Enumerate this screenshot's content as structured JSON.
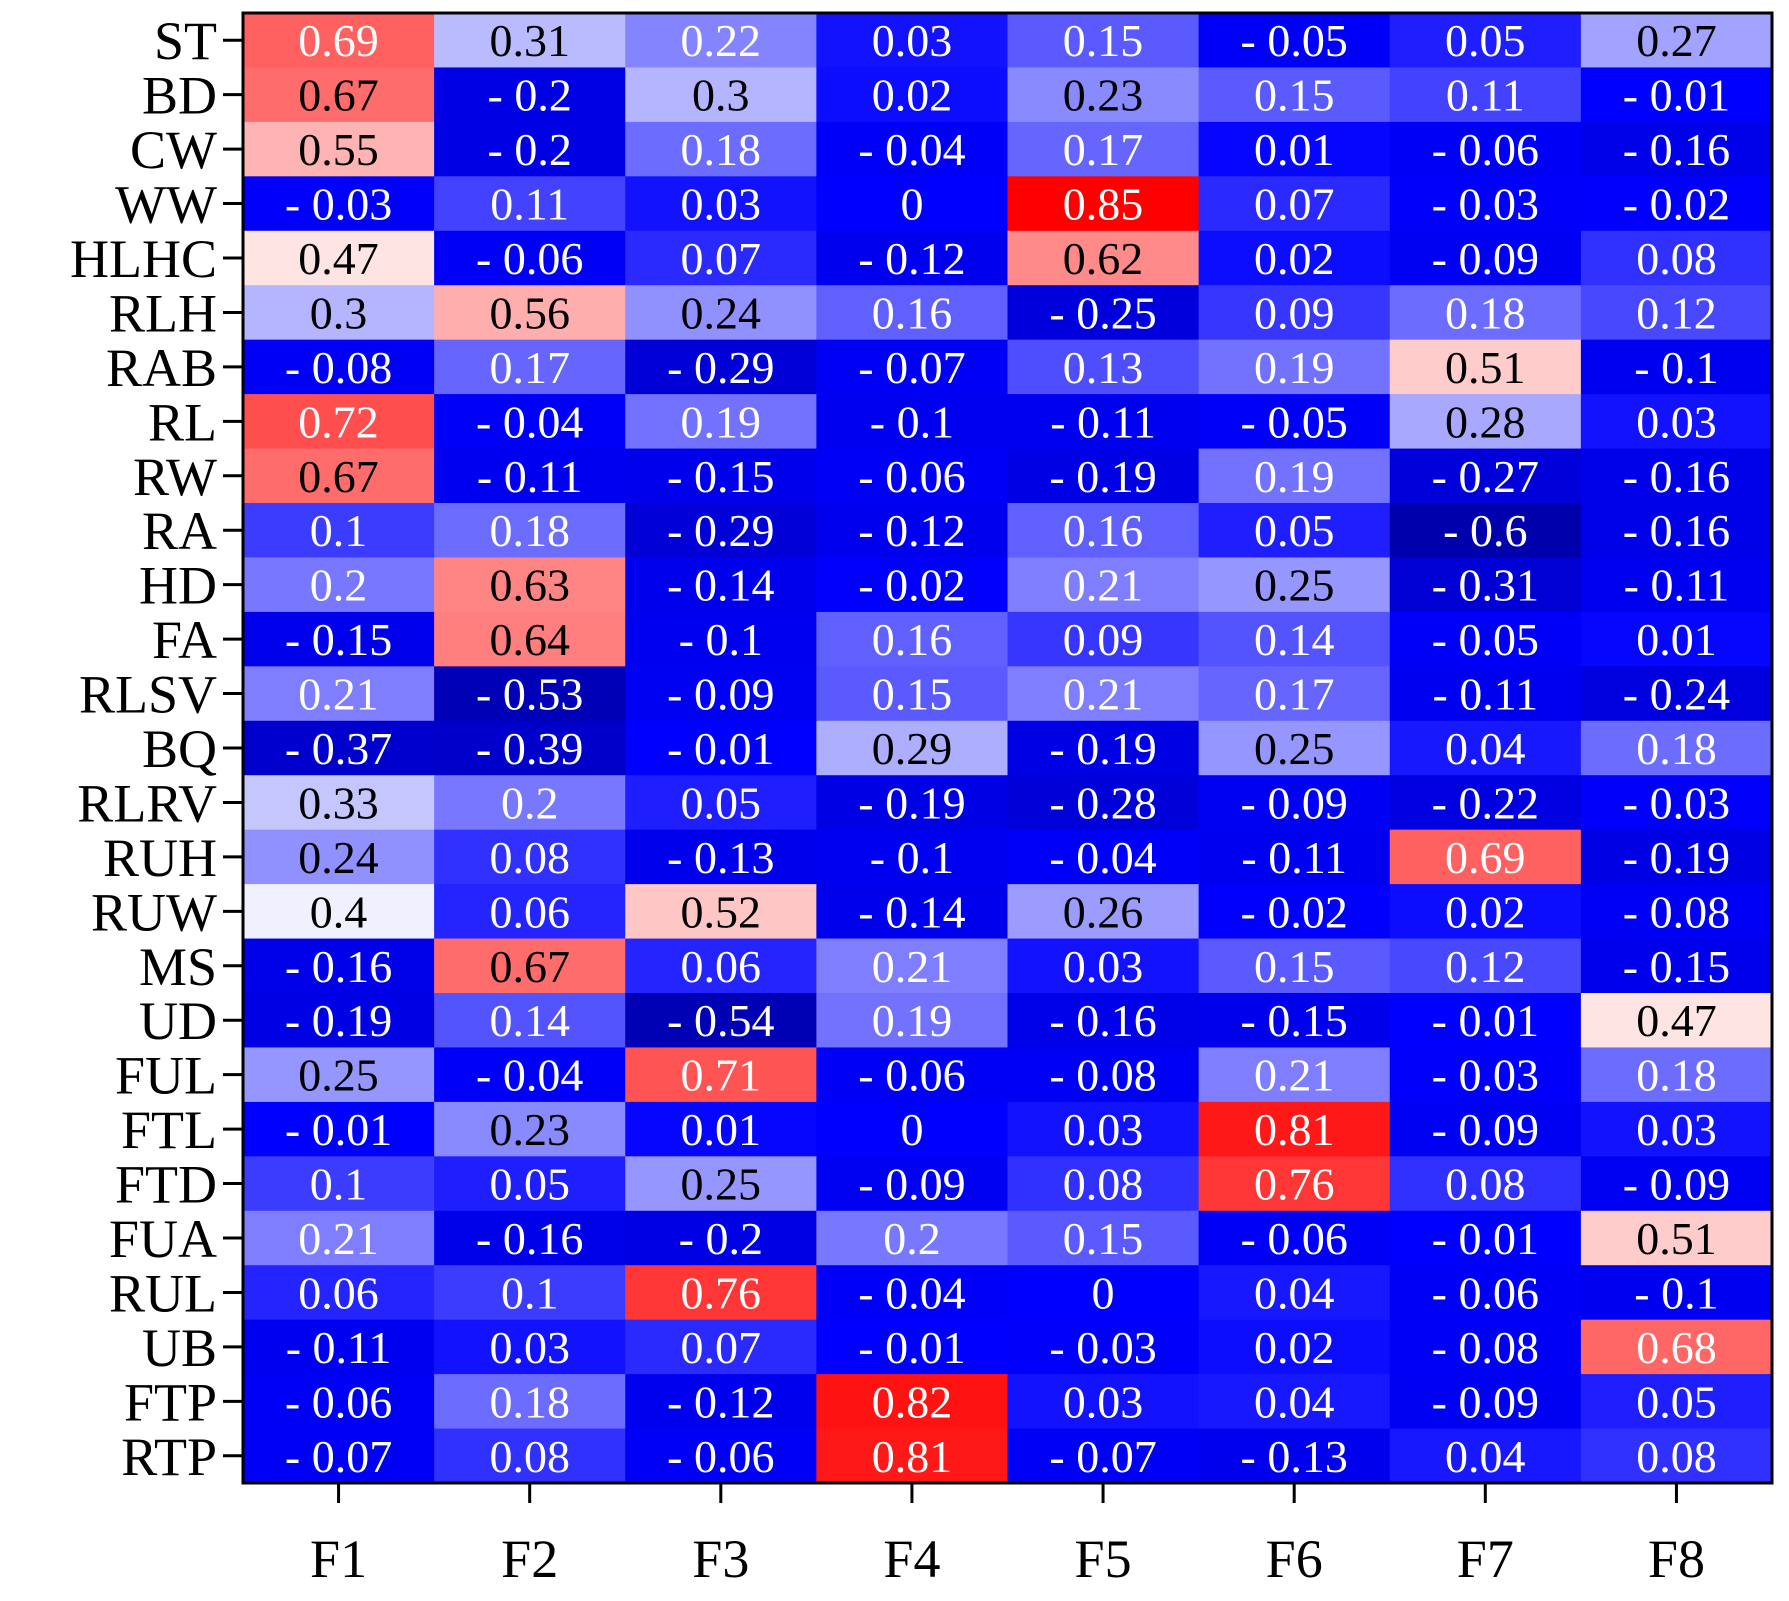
{
  "chart_data": {
    "type": "heatmap",
    "title": "",
    "xlabel": "",
    "ylabel": "",
    "columns": [
      "F1",
      "F2",
      "F3",
      "F4",
      "F5",
      "F6",
      "F7",
      "F8"
    ],
    "rows": [
      "ST",
      "BD",
      "CW",
      "WW",
      "HLHC",
      "RLH",
      "RAB",
      "RL",
      "RW",
      "RA",
      "HD",
      "FA",
      "RLSV",
      "BQ",
      "RLRV",
      "RUH",
      "RUW",
      "MS",
      "UD",
      "FUL",
      "FTL",
      "FTD",
      "FUA",
      "RUL",
      "UB",
      "FTP",
      "RTP"
    ],
    "values": [
      [
        0.69,
        0.31,
        0.22,
        0.03,
        0.15,
        -0.05,
        0.05,
        0.27
      ],
      [
        0.67,
        -0.2,
        0.3,
        0.02,
        0.23,
        0.15,
        0.11,
        -0.01
      ],
      [
        0.55,
        -0.2,
        0.18,
        -0.04,
        0.17,
        0.01,
        -0.06,
        -0.16
      ],
      [
        -0.03,
        0.11,
        0.03,
        0,
        0.85,
        0.07,
        -0.03,
        -0.02
      ],
      [
        0.47,
        -0.06,
        0.07,
        -0.12,
        0.62,
        0.02,
        -0.09,
        0.08
      ],
      [
        0.3,
        0.56,
        0.24,
        0.16,
        -0.25,
        0.09,
        0.18,
        0.12
      ],
      [
        -0.08,
        0.17,
        -0.29,
        -0.07,
        0.13,
        0.19,
        0.51,
        -0.1
      ],
      [
        0.72,
        -0.04,
        0.19,
        -0.1,
        -0.11,
        -0.05,
        0.28,
        0.03
      ],
      [
        0.67,
        -0.11,
        -0.15,
        -0.06,
        -0.19,
        0.19,
        -0.27,
        -0.16
      ],
      [
        0.1,
        0.18,
        -0.29,
        -0.12,
        0.16,
        0.05,
        -0.6,
        -0.16
      ],
      [
        0.2,
        0.63,
        -0.14,
        -0.02,
        0.21,
        0.25,
        -0.31,
        -0.11
      ],
      [
        -0.15,
        0.64,
        -0.1,
        0.16,
        0.09,
        0.14,
        -0.05,
        0.01
      ],
      [
        0.21,
        -0.53,
        -0.09,
        0.15,
        0.21,
        0.17,
        -0.11,
        -0.24
      ],
      [
        -0.37,
        -0.39,
        -0.01,
        0.29,
        -0.19,
        0.25,
        0.04,
        0.18
      ],
      [
        0.33,
        0.2,
        0.05,
        -0.19,
        -0.28,
        -0.09,
        -0.22,
        -0.03
      ],
      [
        0.24,
        0.08,
        -0.13,
        -0.1,
        -0.04,
        -0.11,
        0.69,
        -0.19
      ],
      [
        0.4,
        0.06,
        0.52,
        -0.14,
        0.26,
        -0.02,
        0.02,
        -0.08
      ],
      [
        -0.16,
        0.67,
        0.06,
        0.21,
        0.03,
        0.15,
        0.12,
        -0.15
      ],
      [
        -0.19,
        0.14,
        -0.54,
        0.19,
        -0.16,
        -0.15,
        -0.01,
        0.47
      ],
      [
        0.25,
        -0.04,
        0.71,
        -0.06,
        -0.08,
        0.21,
        -0.03,
        0.18
      ],
      [
        -0.01,
        0.23,
        0.01,
        0,
        0.03,
        0.81,
        -0.09,
        0.03
      ],
      [
        0.1,
        0.05,
        0.25,
        -0.09,
        0.08,
        0.76,
        0.08,
        -0.09
      ],
      [
        0.21,
        -0.16,
        -0.2,
        0.2,
        0.15,
        -0.06,
        -0.01,
        0.51
      ],
      [
        0.06,
        0.1,
        0.76,
        -0.04,
        0,
        0.04,
        -0.06,
        -0.1
      ],
      [
        -0.11,
        0.03,
        0.07,
        -0.01,
        -0.03,
        0.02,
        -0.08,
        0.68
      ],
      [
        -0.06,
        0.18,
        -0.12,
        0.82,
        0.03,
        0.04,
        -0.09,
        0.05
      ],
      [
        -0.07,
        0.08,
        -0.06,
        0.81,
        -0.07,
        -0.13,
        0.04,
        0.08
      ]
    ],
    "value_labels": [
      [
        "0.69",
        "0.31",
        "0.22",
        "0.03",
        "0.15",
        "- 0.05",
        "0.05",
        "0.27"
      ],
      [
        "0.67",
        "- 0.2",
        "0.3",
        "0.02",
        "0.23",
        "0.15",
        "0.11",
        "- 0.01"
      ],
      [
        "0.55",
        "- 0.2",
        "0.18",
        "- 0.04",
        "0.17",
        "0.01",
        "- 0.06",
        "- 0.16"
      ],
      [
        "- 0.03",
        "0.11",
        "0.03",
        "0",
        "0.85",
        "0.07",
        "- 0.03",
        "- 0.02"
      ],
      [
        "0.47",
        "- 0.06",
        "0.07",
        "- 0.12",
        "0.62",
        "0.02",
        "- 0.09",
        "0.08"
      ],
      [
        "0.3",
        "0.56",
        "0.24",
        "0.16",
        "- 0.25",
        "0.09",
        "0.18",
        "0.12"
      ],
      [
        "- 0.08",
        "0.17",
        "- 0.29",
        "- 0.07",
        "0.13",
        "0.19",
        "0.51",
        "- 0.1"
      ],
      [
        "0.72",
        "- 0.04",
        "0.19",
        "- 0.1",
        "- 0.11",
        "- 0.05",
        "0.28",
        "0.03"
      ],
      [
        "0.67",
        "- 0.11",
        "- 0.15",
        "- 0.06",
        "- 0.19",
        "0.19",
        "- 0.27",
        "- 0.16"
      ],
      [
        "0.1",
        "0.18",
        "- 0.29",
        "- 0.12",
        "0.16",
        "0.05",
        "- 0.6",
        "- 0.16"
      ],
      [
        "0.2",
        "0.63",
        "- 0.14",
        "- 0.02",
        "0.21",
        "0.25",
        "- 0.31",
        "- 0.11"
      ],
      [
        "- 0.15",
        "0.64",
        "- 0.1",
        "0.16",
        "0.09",
        "0.14",
        "- 0.05",
        "0.01"
      ],
      [
        "0.21",
        "- 0.53",
        "- 0.09",
        "0.15",
        "0.21",
        "0.17",
        "- 0.11",
        "- 0.24"
      ],
      [
        "- 0.37",
        "- 0.39",
        "- 0.01",
        "0.29",
        "- 0.19",
        "0.25",
        "0.04",
        "0.18"
      ],
      [
        "0.33",
        "0.2",
        "0.05",
        "- 0.19",
        "- 0.28",
        "- 0.09",
        "- 0.22",
        "- 0.03"
      ],
      [
        "0.24",
        "0.08",
        "- 0.13",
        "- 0.1",
        "- 0.04",
        "- 0.11",
        "0.69",
        "- 0.19"
      ],
      [
        "0.4",
        "0.06",
        "0.52",
        "- 0.14",
        "0.26",
        "- 0.02",
        "0.02",
        "- 0.08"
      ],
      [
        "- 0.16",
        "0.67",
        "0.06",
        "0.21",
        "0.03",
        "0.15",
        "0.12",
        "- 0.15"
      ],
      [
        "- 0.19",
        "0.14",
        "- 0.54",
        "0.19",
        "- 0.16",
        "- 0.15",
        "- 0.01",
        "0.47"
      ],
      [
        "0.25",
        "- 0.04",
        "0.71",
        "- 0.06",
        "- 0.08",
        "0.21",
        "- 0.03",
        "0.18"
      ],
      [
        "- 0.01",
        "0.23",
        "0.01",
        "0",
        "0.03",
        "0.81",
        "- 0.09",
        "0.03"
      ],
      [
        "0.1",
        "0.05",
        "0.25",
        "- 0.09",
        "0.08",
        "0.76",
        "0.08",
        "- 0.09"
      ],
      [
        "0.21",
        "- 0.16",
        "- 0.2",
        "0.2",
        "0.15",
        "- 0.06",
        "- 0.01",
        "0.51"
      ],
      [
        "0.06",
        "0.1",
        "0.76",
        "- 0.04",
        "0",
        "0.04",
        "- 0.06",
        "- 0.1"
      ],
      [
        "- 0.11",
        "0.03",
        "0.07",
        "- 0.01",
        "- 0.03",
        "0.02",
        "- 0.08",
        "0.68"
      ],
      [
        "- 0.06",
        "0.18",
        "- 0.12",
        "0.82",
        "0.03",
        "0.04",
        "- 0.09",
        "0.05"
      ],
      [
        "- 0.07",
        "0.08",
        "- 0.06",
        "0.81",
        "- 0.07",
        "- 0.13",
        "0.04",
        "0.08"
      ]
    ],
    "colormap": "bwr",
    "colors": {
      "low": "#00008b",
      "mid_low": "#0000ff",
      "mid": "#ffffff",
      "high": "#ff0000"
    },
    "color_range": [
      -0.85,
      0.85
    ],
    "grid": false,
    "legend": "none"
  }
}
